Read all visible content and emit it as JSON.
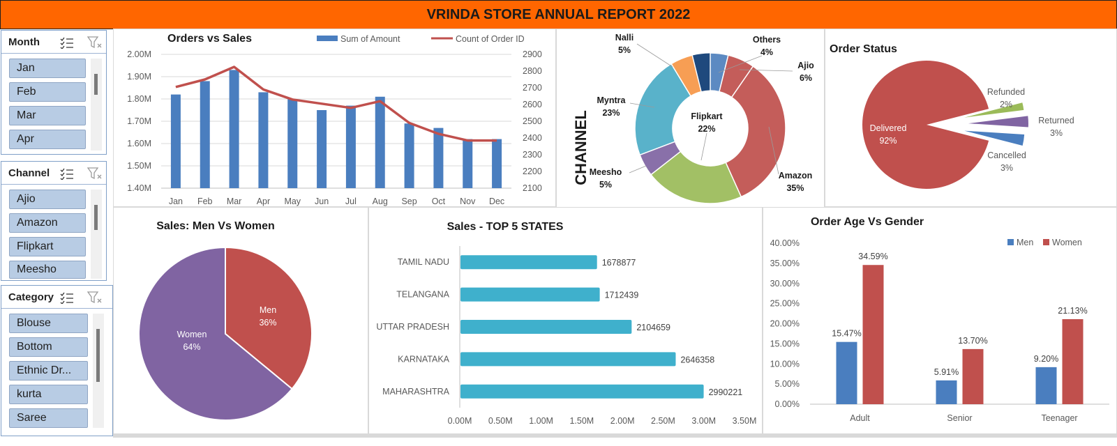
{
  "title": "VRINDA STORE ANNUAL REPORT 2022",
  "slicers": [
    {
      "name": "Month",
      "items": [
        "Jan",
        "Feb",
        "Mar",
        "Apr"
      ]
    },
    {
      "name": "Channel",
      "items": [
        "Ajio",
        "Amazon",
        "Flipkart",
        "Meesho"
      ]
    },
    {
      "name": "Category",
      "items": [
        "Blouse",
        "Bottom",
        "Ethnic Dr...",
        "kurta",
        "Saree"
      ]
    }
  ],
  "colors": {
    "banner": "#ff6600",
    "blue": "#4a7ebf",
    "red": "#c0504d",
    "purple": "#8064a2",
    "green": "#9bbb59",
    "teal": "#4bacc6",
    "orange": "#f79646",
    "navy": "#1f497d"
  },
  "chart_data": [
    {
      "type": "bar",
      "title": "Orders vs Sales",
      "categories": [
        "Jan",
        "Feb",
        "Mar",
        "Apr",
        "May",
        "Jun",
        "Jul",
        "Aug",
        "Sep",
        "Oct",
        "Nov",
        "Dec"
      ],
      "series": [
        {
          "name": "Sum of Amount",
          "type": "bar",
          "axis": "left",
          "values": [
            1.82,
            1.88,
            1.93,
            1.83,
            1.8,
            1.75,
            1.77,
            1.81,
            1.69,
            1.67,
            1.62,
            1.62
          ]
        },
        {
          "name": "Count of Order ID",
          "type": "line",
          "axis": "right",
          "values": [
            2705,
            2750,
            2825,
            2690,
            2630,
            2605,
            2580,
            2620,
            2490,
            2425,
            2385,
            2385
          ]
        }
      ],
      "yticks_left": [
        "1.40M",
        "1.50M",
        "1.60M",
        "1.70M",
        "1.80M",
        "1.90M",
        "2.00M"
      ],
      "ylim_left": [
        1.4,
        2.0
      ],
      "yticks_right": [
        "2100",
        "2200",
        "2300",
        "2400",
        "2500",
        "2600",
        "2700",
        "2800",
        "2900"
      ],
      "ylim_right": [
        2100,
        2900
      ],
      "legend": "top",
      "grid": true
    },
    {
      "type": "pie",
      "variant": "donut",
      "ylabel": "CHANNEL",
      "slices": [
        {
          "label": "Others",
          "pct": "4%",
          "value": 4
        },
        {
          "label": "Ajio",
          "pct": "6%",
          "value": 6
        },
        {
          "label": "Amazon",
          "pct": "35%",
          "value": 35
        },
        {
          "label": "Flipkart",
          "pct": "22%",
          "value": 22
        },
        {
          "label": "Meesho",
          "pct": "5%",
          "value": 5
        },
        {
          "label": "Myntra",
          "pct": "23%",
          "value": 23
        },
        {
          "label": "Nalli",
          "pct": "5%",
          "value": 5
        }
      ]
    },
    {
      "type": "pie",
      "title": "Order Status",
      "slices": [
        {
          "label": "Delivered",
          "pct": "92%",
          "value": 92
        },
        {
          "label": "Refunded",
          "pct": "2%",
          "value": 2
        },
        {
          "label": "Returned",
          "pct": "3%",
          "value": 3
        },
        {
          "label": "Cancelled",
          "pct": "3%",
          "value": 3
        }
      ]
    },
    {
      "type": "pie",
      "title": "Sales: Men Vs Women",
      "slices": [
        {
          "label": "Men",
          "pct": "36%",
          "value": 36
        },
        {
          "label": "Women",
          "pct": "64%",
          "value": 64
        }
      ]
    },
    {
      "type": "bar",
      "orientation": "horizontal",
      "title": "Sales - TOP 5 STATES",
      "categories": [
        "TAMIL NADU",
        "TELANGANA",
        "UTTAR PRADESH",
        "KARNATAKA",
        "MAHARASHTRA"
      ],
      "values": [
        1678877,
        1712439,
        2104659,
        2646358,
        2990221
      ],
      "xticks": [
        "0.00M",
        "0.50M",
        "1.00M",
        "1.50M",
        "2.00M",
        "2.50M",
        "3.00M",
        "3.50M"
      ],
      "xlim": [
        0,
        3500000
      ]
    },
    {
      "type": "bar",
      "title": "Order Age Vs Gender",
      "categories": [
        "Adult",
        "Senior",
        "Teenager"
      ],
      "series": [
        {
          "name": "Men",
          "values": [
            15.47,
            5.91,
            9.2
          ],
          "labels": [
            "15.47%",
            "5.91%",
            "9.20%"
          ]
        },
        {
          "name": "Women",
          "values": [
            34.59,
            13.7,
            21.13
          ],
          "labels": [
            "34.59%",
            "13.70%",
            "21.13%"
          ]
        }
      ],
      "yticks": [
        "0.00%",
        "5.00%",
        "10.00%",
        "15.00%",
        "20.00%",
        "25.00%",
        "30.00%",
        "35.00%",
        "40.00%"
      ],
      "ylim": [
        0,
        40
      ],
      "legend": "top-right"
    }
  ]
}
